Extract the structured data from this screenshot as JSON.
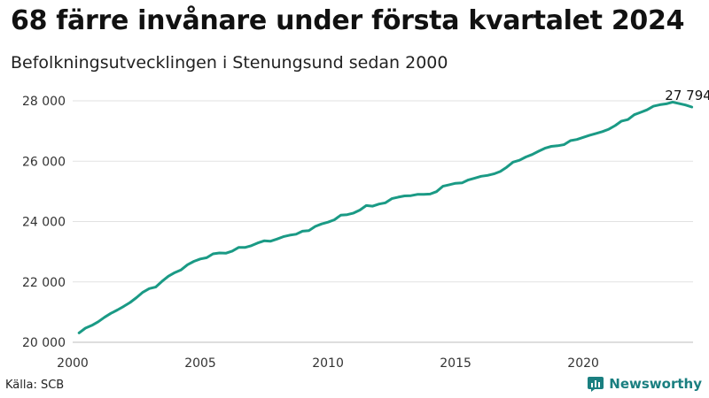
{
  "chart_data": {
    "type": "line",
    "title": "68 färre invånare under första kvartalet 2024",
    "subtitle": "Befolkningsutvecklingen i Stenungsund sedan 2000",
    "xlabel": "",
    "ylabel": "",
    "xlim": [
      2000,
      2024.3
    ],
    "ylim": [
      20000,
      28000
    ],
    "x_ticks": [
      {
        "value": 2000,
        "label": "2000"
      },
      {
        "value": 2005,
        "label": "2005"
      },
      {
        "value": 2010,
        "label": "2010"
      },
      {
        "value": 2015,
        "label": "2015"
      },
      {
        "value": 2020,
        "label": "2020"
      }
    ],
    "y_ticks": [
      {
        "value": 20000,
        "label": "20 000"
      },
      {
        "value": 22000,
        "label": "22 000"
      },
      {
        "value": 24000,
        "label": "24 000"
      },
      {
        "value": 26000,
        "label": "26 000"
      },
      {
        "value": 28000,
        "label": "28 000"
      }
    ],
    "grid": true,
    "line_color": "#1a9a85",
    "series": [
      {
        "name": "Befolkning",
        "x": [
          2000.25,
          2000.5,
          2000.75,
          2001.0,
          2001.25,
          2001.5,
          2001.75,
          2002.0,
          2002.25,
          2002.5,
          2002.75,
          2003.0,
          2003.25,
          2003.5,
          2003.75,
          2004.0,
          2004.25,
          2004.5,
          2004.75,
          2005.0,
          2005.25,
          2005.5,
          2005.75,
          2006.0,
          2006.25,
          2006.5,
          2006.75,
          2007.0,
          2007.25,
          2007.5,
          2007.75,
          2008.0,
          2008.25,
          2008.5,
          2008.75,
          2009.0,
          2009.25,
          2009.5,
          2009.75,
          2010.0,
          2010.25,
          2010.5,
          2010.75,
          2011.0,
          2011.25,
          2011.5,
          2011.75,
          2012.0,
          2012.25,
          2012.5,
          2012.75,
          2013.0,
          2013.25,
          2013.5,
          2013.75,
          2014.0,
          2014.25,
          2014.5,
          2014.75,
          2015.0,
          2015.25,
          2015.5,
          2015.75,
          2016.0,
          2016.25,
          2016.5,
          2016.75,
          2017.0,
          2017.25,
          2017.5,
          2017.75,
          2018.0,
          2018.25,
          2018.5,
          2018.75,
          2019.0,
          2019.25,
          2019.5,
          2019.75,
          2020.0,
          2020.25,
          2020.5,
          2020.75,
          2021.0,
          2021.25,
          2021.5,
          2021.75,
          2022.0,
          2022.25,
          2022.5,
          2022.75,
          2023.0,
          2023.25,
          2023.5,
          2023.75,
          2024.0,
          2024.25
        ],
        "values": [
          20310,
          20470,
          20560,
          20680,
          20830,
          20960,
          21070,
          21190,
          21320,
          21480,
          21660,
          21780,
          21830,
          22020,
          22190,
          22310,
          22400,
          22570,
          22680,
          22760,
          22800,
          22930,
          22960,
          22950,
          23020,
          23140,
          23140,
          23200,
          23290,
          23360,
          23350,
          23420,
          23500,
          23550,
          23580,
          23680,
          23700,
          23840,
          23920,
          23980,
          24060,
          24210,
          24230,
          24280,
          24380,
          24530,
          24510,
          24580,
          24620,
          24760,
          24810,
          24850,
          24860,
          24900,
          24900,
          24910,
          24990,
          25170,
          25220,
          25270,
          25280,
          25380,
          25440,
          25500,
          25530,
          25580,
          25660,
          25800,
          25970,
          26030,
          26140,
          26220,
          26330,
          26430,
          26490,
          26510,
          26550,
          26680,
          26720,
          26790,
          26860,
          26920,
          26980,
          27060,
          27180,
          27330,
          27380,
          27540,
          27620,
          27700,
          27820,
          27870,
          27900,
          27960,
          27910,
          27862,
          27794
        ]
      }
    ],
    "annotations": [
      {
        "label": "27 794",
        "x": 2024.25,
        "y": 27794
      }
    ]
  },
  "footer": {
    "source": "Källa: SCB",
    "brand": "Newsworthy"
  }
}
